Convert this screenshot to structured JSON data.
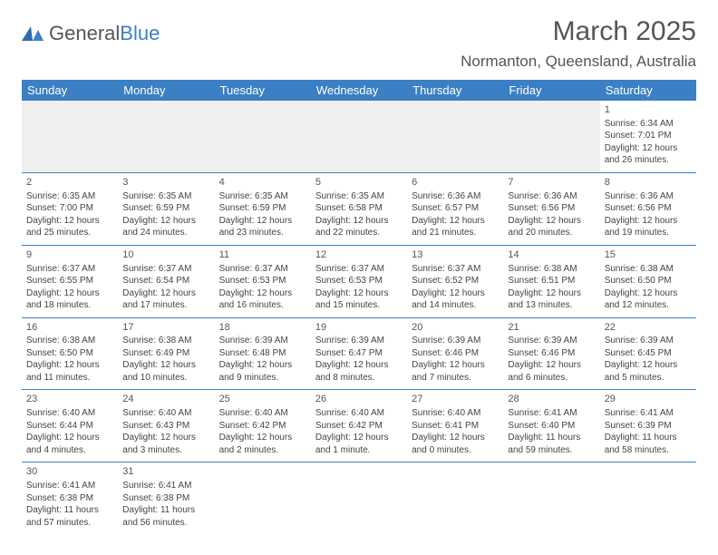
{
  "brand": {
    "part1": "General",
    "part2": "Blue"
  },
  "title": "March 2025",
  "location": "Normanton, Queensland, Australia",
  "colors": {
    "header_bg": "#3b7fc4",
    "text": "#444444",
    "title": "#555555"
  },
  "day_headers": [
    "Sunday",
    "Monday",
    "Tuesday",
    "Wednesday",
    "Thursday",
    "Friday",
    "Saturday"
  ],
  "weeks": [
    [
      null,
      null,
      null,
      null,
      null,
      null,
      {
        "n": "1",
        "sr": "Sunrise: 6:34 AM",
        "ss": "Sunset: 7:01 PM",
        "d1": "Daylight: 12 hours",
        "d2": "and 26 minutes."
      }
    ],
    [
      {
        "n": "2",
        "sr": "Sunrise: 6:35 AM",
        "ss": "Sunset: 7:00 PM",
        "d1": "Daylight: 12 hours",
        "d2": "and 25 minutes."
      },
      {
        "n": "3",
        "sr": "Sunrise: 6:35 AM",
        "ss": "Sunset: 6:59 PM",
        "d1": "Daylight: 12 hours",
        "d2": "and 24 minutes."
      },
      {
        "n": "4",
        "sr": "Sunrise: 6:35 AM",
        "ss": "Sunset: 6:59 PM",
        "d1": "Daylight: 12 hours",
        "d2": "and 23 minutes."
      },
      {
        "n": "5",
        "sr": "Sunrise: 6:35 AM",
        "ss": "Sunset: 6:58 PM",
        "d1": "Daylight: 12 hours",
        "d2": "and 22 minutes."
      },
      {
        "n": "6",
        "sr": "Sunrise: 6:36 AM",
        "ss": "Sunset: 6:57 PM",
        "d1": "Daylight: 12 hours",
        "d2": "and 21 minutes."
      },
      {
        "n": "7",
        "sr": "Sunrise: 6:36 AM",
        "ss": "Sunset: 6:56 PM",
        "d1": "Daylight: 12 hours",
        "d2": "and 20 minutes."
      },
      {
        "n": "8",
        "sr": "Sunrise: 6:36 AM",
        "ss": "Sunset: 6:56 PM",
        "d1": "Daylight: 12 hours",
        "d2": "and 19 minutes."
      }
    ],
    [
      {
        "n": "9",
        "sr": "Sunrise: 6:37 AM",
        "ss": "Sunset: 6:55 PM",
        "d1": "Daylight: 12 hours",
        "d2": "and 18 minutes."
      },
      {
        "n": "10",
        "sr": "Sunrise: 6:37 AM",
        "ss": "Sunset: 6:54 PM",
        "d1": "Daylight: 12 hours",
        "d2": "and 17 minutes."
      },
      {
        "n": "11",
        "sr": "Sunrise: 6:37 AM",
        "ss": "Sunset: 6:53 PM",
        "d1": "Daylight: 12 hours",
        "d2": "and 16 minutes."
      },
      {
        "n": "12",
        "sr": "Sunrise: 6:37 AM",
        "ss": "Sunset: 6:53 PM",
        "d1": "Daylight: 12 hours",
        "d2": "and 15 minutes."
      },
      {
        "n": "13",
        "sr": "Sunrise: 6:37 AM",
        "ss": "Sunset: 6:52 PM",
        "d1": "Daylight: 12 hours",
        "d2": "and 14 minutes."
      },
      {
        "n": "14",
        "sr": "Sunrise: 6:38 AM",
        "ss": "Sunset: 6:51 PM",
        "d1": "Daylight: 12 hours",
        "d2": "and 13 minutes."
      },
      {
        "n": "15",
        "sr": "Sunrise: 6:38 AM",
        "ss": "Sunset: 6:50 PM",
        "d1": "Daylight: 12 hours",
        "d2": "and 12 minutes."
      }
    ],
    [
      {
        "n": "16",
        "sr": "Sunrise: 6:38 AM",
        "ss": "Sunset: 6:50 PM",
        "d1": "Daylight: 12 hours",
        "d2": "and 11 minutes."
      },
      {
        "n": "17",
        "sr": "Sunrise: 6:38 AM",
        "ss": "Sunset: 6:49 PM",
        "d1": "Daylight: 12 hours",
        "d2": "and 10 minutes."
      },
      {
        "n": "18",
        "sr": "Sunrise: 6:39 AM",
        "ss": "Sunset: 6:48 PM",
        "d1": "Daylight: 12 hours",
        "d2": "and 9 minutes."
      },
      {
        "n": "19",
        "sr": "Sunrise: 6:39 AM",
        "ss": "Sunset: 6:47 PM",
        "d1": "Daylight: 12 hours",
        "d2": "and 8 minutes."
      },
      {
        "n": "20",
        "sr": "Sunrise: 6:39 AM",
        "ss": "Sunset: 6:46 PM",
        "d1": "Daylight: 12 hours",
        "d2": "and 7 minutes."
      },
      {
        "n": "21",
        "sr": "Sunrise: 6:39 AM",
        "ss": "Sunset: 6:46 PM",
        "d1": "Daylight: 12 hours",
        "d2": "and 6 minutes."
      },
      {
        "n": "22",
        "sr": "Sunrise: 6:39 AM",
        "ss": "Sunset: 6:45 PM",
        "d1": "Daylight: 12 hours",
        "d2": "and 5 minutes."
      }
    ],
    [
      {
        "n": "23",
        "sr": "Sunrise: 6:40 AM",
        "ss": "Sunset: 6:44 PM",
        "d1": "Daylight: 12 hours",
        "d2": "and 4 minutes."
      },
      {
        "n": "24",
        "sr": "Sunrise: 6:40 AM",
        "ss": "Sunset: 6:43 PM",
        "d1": "Daylight: 12 hours",
        "d2": "and 3 minutes."
      },
      {
        "n": "25",
        "sr": "Sunrise: 6:40 AM",
        "ss": "Sunset: 6:42 PM",
        "d1": "Daylight: 12 hours",
        "d2": "and 2 minutes."
      },
      {
        "n": "26",
        "sr": "Sunrise: 6:40 AM",
        "ss": "Sunset: 6:42 PM",
        "d1": "Daylight: 12 hours",
        "d2": "and 1 minute."
      },
      {
        "n": "27",
        "sr": "Sunrise: 6:40 AM",
        "ss": "Sunset: 6:41 PM",
        "d1": "Daylight: 12 hours",
        "d2": "and 0 minutes."
      },
      {
        "n": "28",
        "sr": "Sunrise: 6:41 AM",
        "ss": "Sunset: 6:40 PM",
        "d1": "Daylight: 11 hours",
        "d2": "and 59 minutes."
      },
      {
        "n": "29",
        "sr": "Sunrise: 6:41 AM",
        "ss": "Sunset: 6:39 PM",
        "d1": "Daylight: 11 hours",
        "d2": "and 58 minutes."
      }
    ],
    [
      {
        "n": "30",
        "sr": "Sunrise: 6:41 AM",
        "ss": "Sunset: 6:38 PM",
        "d1": "Daylight: 11 hours",
        "d2": "and 57 minutes."
      },
      {
        "n": "31",
        "sr": "Sunrise: 6:41 AM",
        "ss": "Sunset: 6:38 PM",
        "d1": "Daylight: 11 hours",
        "d2": "and 56 minutes."
      },
      null,
      null,
      null,
      null,
      null
    ]
  ]
}
